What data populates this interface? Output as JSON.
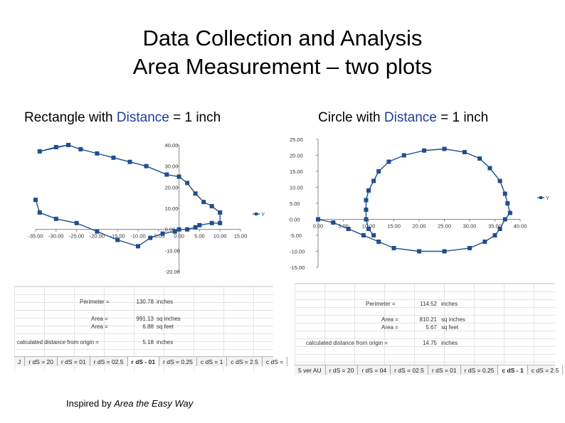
{
  "title": {
    "line1": "Data Collection and Analysis",
    "line2": "Area Measurement – two plots"
  },
  "left": {
    "subtitle_pre": "Rectangle with ",
    "subtitle_kw": "Distance",
    "subtitle_post": " = 1 inch",
    "sheet": {
      "rows": [
        {
          "label": "Perimeter =",
          "value": "130.78",
          "unit": "inches"
        },
        {
          "label": "Area =",
          "value": "991.13",
          "unit": "sq inches"
        },
        {
          "label": "Area =",
          "value": "6.88",
          "unit": "sq feet"
        },
        {
          "label": "calculated distance from origin =",
          "value": "5.18",
          "unit": "inches"
        }
      ],
      "tabs": [
        "J",
        "r dS = 20",
        "r dS = 01",
        "r dS = 02.5",
        "r dS - 01",
        "r dS = 0.25",
        "c dS = 1",
        "c dS = 2.5",
        "c dS ="
      ],
      "active_tab": 4
    }
  },
  "right": {
    "subtitle_pre": "Circle with ",
    "subtitle_kw": "Distance",
    "subtitle_post": " = 1 inch",
    "sheet": {
      "rows": [
        {
          "label": "Perimeter =",
          "value": "114.52",
          "unit": "inches"
        },
        {
          "label": "Area =",
          "value": "810.21",
          "unit": "sq inches"
        },
        {
          "label": "Area =",
          "value": "5.67",
          "unit": "sq feet"
        },
        {
          "label": "calculated distance from origin =",
          "value": "14.75",
          "unit": "inches"
        }
      ],
      "tabs": [
        "5 ver AU",
        "r dS = 20",
        "r dS = 04",
        "r dS = 02.5",
        "r dS = 01",
        "r dS = 0.25",
        "c dS - 1",
        "c dS = 2.5"
      ],
      "active_tab": 6
    }
  },
  "credit": {
    "pre": "Inspired by ",
    "em": "Area the Easy Way"
  },
  "chart_data": [
    {
      "type": "scatter",
      "title": "",
      "series": [
        {
          "name": "Y",
          "color": "#1f4e8c",
          "points": [
            [
              -35,
              14
            ],
            [
              -34,
              8
            ],
            [
              -30,
              5
            ],
            [
              -25,
              3
            ],
            [
              -20,
              -1
            ],
            [
              -15,
              -5
            ],
            [
              -10,
              -8
            ],
            [
              -7,
              -4
            ],
            [
              -4,
              -2
            ],
            [
              -1,
              -1
            ],
            [
              0,
              0
            ],
            [
              2,
              0
            ],
            [
              4,
              1
            ],
            [
              5,
              2
            ],
            [
              8,
              3
            ],
            [
              10,
              3
            ],
            [
              10,
              8
            ],
            [
              8,
              11
            ],
            [
              6,
              13
            ],
            [
              4,
              17
            ],
            [
              2,
              22
            ],
            [
              0,
              25
            ],
            [
              -3,
              26
            ],
            [
              -8,
              30
            ],
            [
              -12,
              32
            ],
            [
              -16,
              34
            ],
            [
              -20,
              36
            ],
            [
              -24,
              38
            ],
            [
              -27,
              40
            ],
            [
              -30,
              39
            ],
            [
              -34,
              37
            ],
            [
              -27,
              40
            ]
          ]
        }
      ],
      "xticks": [
        "-35.00",
        "-30.00",
        "-25.00",
        "-20.00",
        "-15.00",
        "-10.00",
        "-5.00",
        "0.00",
        "5.00",
        "10.00",
        "15.00"
      ],
      "yticks": [
        "40.00",
        "30.00",
        "20.00",
        "10.00",
        "0.00",
        "-10.00",
        "-20.00"
      ],
      "xlim": [
        -35,
        15
      ],
      "ylim": [
        -20,
        40
      ],
      "legend": "right"
    },
    {
      "type": "scatter",
      "title": "",
      "series": [
        {
          "name": "Y",
          "color": "#1f4e8c",
          "points": [
            [
              0,
              0
            ],
            [
              3,
              -1
            ],
            [
              6,
              -3
            ],
            [
              9,
              -5
            ],
            [
              12,
              -7
            ],
            [
              15,
              -9
            ],
            [
              20,
              -10
            ],
            [
              25,
              -10
            ],
            [
              30,
              -9
            ],
            [
              33,
              -7
            ],
            [
              35,
              -5
            ],
            [
              36,
              -3
            ],
            [
              37,
              0
            ],
            [
              38,
              2
            ],
            [
              37.5,
              5
            ],
            [
              37,
              8
            ],
            [
              36,
              12
            ],
            [
              34,
              16
            ],
            [
              32,
              19
            ],
            [
              29,
              21
            ],
            [
              25,
              22
            ],
            [
              21,
              21.5
            ],
            [
              17,
              20
            ],
            [
              14,
              18
            ],
            [
              12,
              15
            ],
            [
              11,
              12
            ],
            [
              10,
              9
            ],
            [
              9.5,
              6
            ],
            [
              9.5,
              3
            ],
            [
              9.5,
              0
            ],
            [
              10,
              -3
            ],
            [
              11,
              -5
            ]
          ]
        }
      ],
      "xticks": [
        "0.00",
        "5.00",
        "10.00",
        "15.00",
        "20.00",
        "25.00",
        "30.00",
        "35.00",
        "40.00"
      ],
      "yticks": [
        "25.00",
        "20.00",
        "15.00",
        "10.00",
        "5.00",
        "0.00",
        "-5.00",
        "-10.00",
        "-15.00"
      ],
      "xlim": [
        0,
        40
      ],
      "ylim": [
        -15,
        25
      ],
      "legend": "right"
    }
  ]
}
